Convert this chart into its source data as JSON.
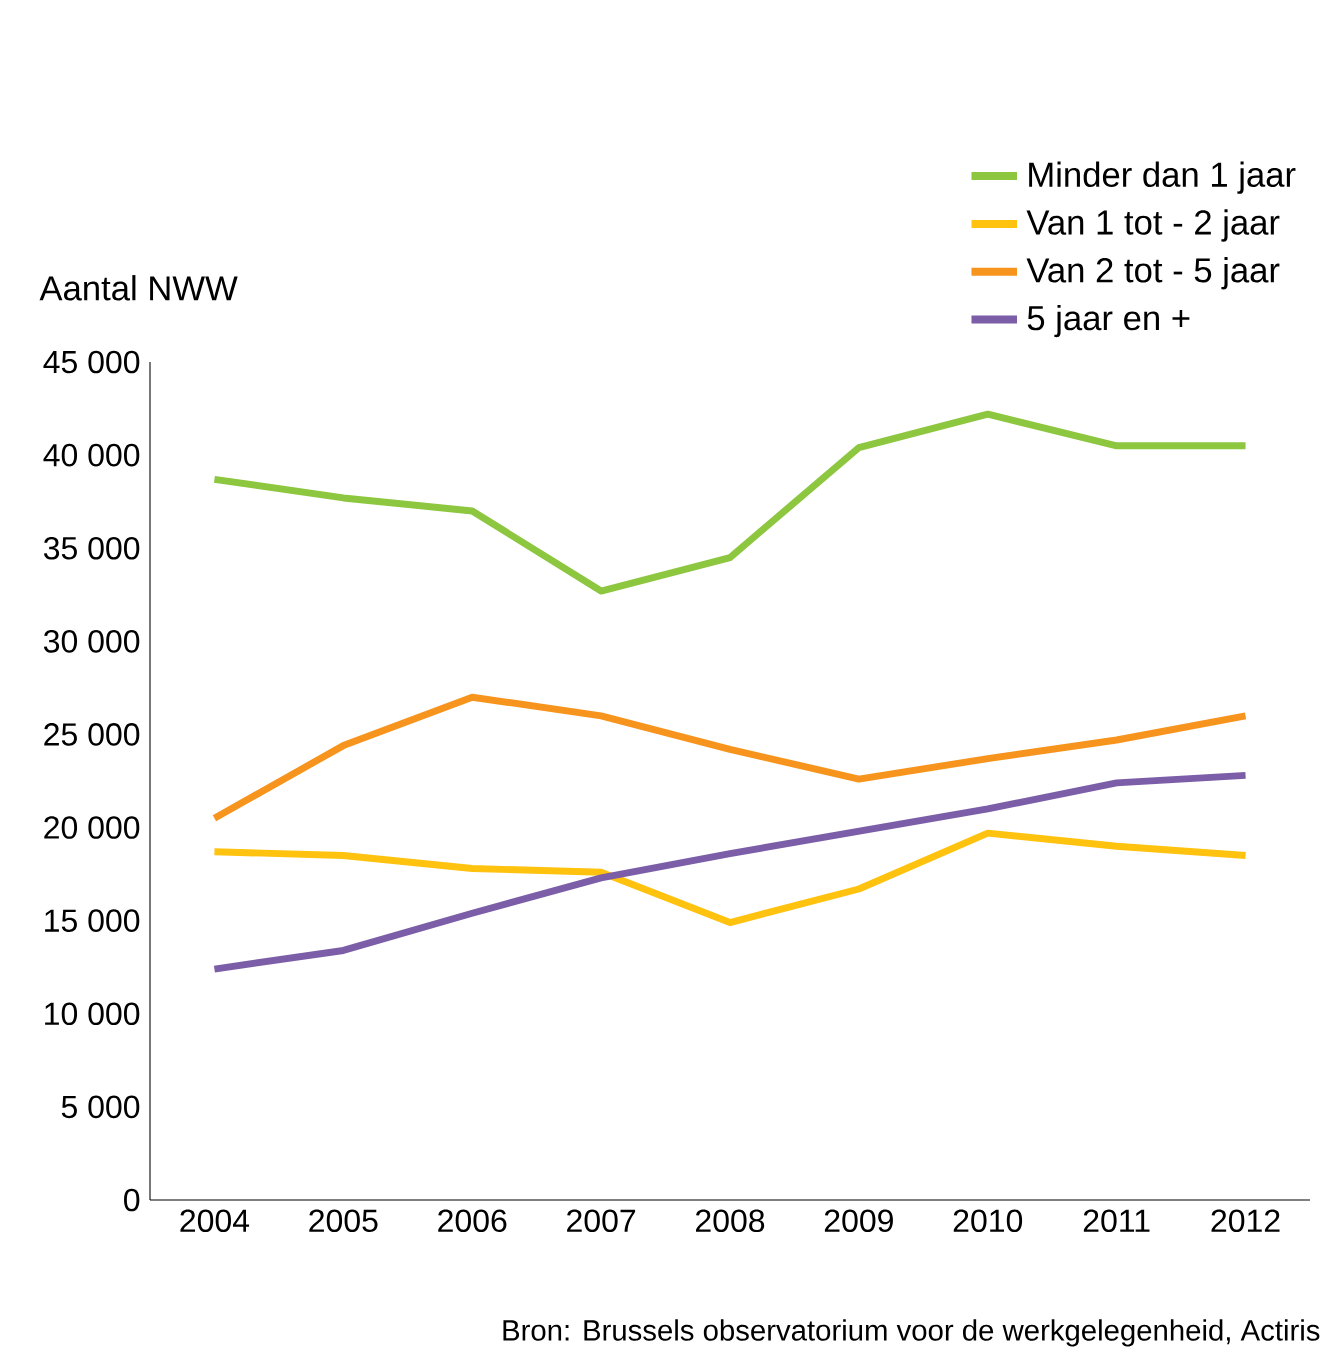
{
  "chart_data": {
    "type": "line",
    "ylabel": "Aantal NWW",
    "categories": [
      "2004",
      "2005",
      "2006",
      "2007",
      "2008",
      "2009",
      "2010",
      "2011",
      "2012"
    ],
    "series": [
      {
        "name": "Minder dan 1 jaar",
        "color": "#8dc63f",
        "values": [
          38700,
          37700,
          37000,
          32700,
          34500,
          40400,
          42200,
          40500,
          40500
        ]
      },
      {
        "name": "Van 1 tot - 2 jaar",
        "color": "#ffc20e",
        "values": [
          18700,
          18500,
          17800,
          17600,
          14900,
          16700,
          19700,
          19000,
          18500
        ]
      },
      {
        "name": "Van 2 tot - 5 jaar",
        "color": "#f7941d",
        "values": [
          20500,
          24400,
          27000,
          26000,
          24200,
          22600,
          23700,
          24700,
          26000
        ]
      },
      {
        "name": "5 jaar en +",
        "color": "#7b5ea7",
        "values": [
          12400,
          13400,
          15400,
          17300,
          18600,
          19800,
          21000,
          22400,
          22800
        ]
      }
    ],
    "ylim": [
      0,
      45000
    ],
    "yticks": [
      0,
      {
        "value": 5000,
        "label": "5 000"
      },
      {
        "value": 10000,
        "label": "10 000"
      },
      {
        "value": 15000,
        "label": "15 000"
      },
      {
        "value": 20000,
        "label": "20 000"
      },
      {
        "value": 25000,
        "label": "25 000"
      },
      {
        "value": 30000,
        "label": "30 000"
      },
      {
        "value": 35000,
        "label": "35 000"
      },
      {
        "value": 40000,
        "label": "40 000"
      },
      {
        "value": 45000,
        "label": "45 000"
      }
    ],
    "grid": false,
    "legend": "top right",
    "marker": "none",
    "line_style": "solid",
    "annotations": [
      "Bron: Brussels observatorium voor de werkgelegenheid, Actiris"
    ]
  }
}
